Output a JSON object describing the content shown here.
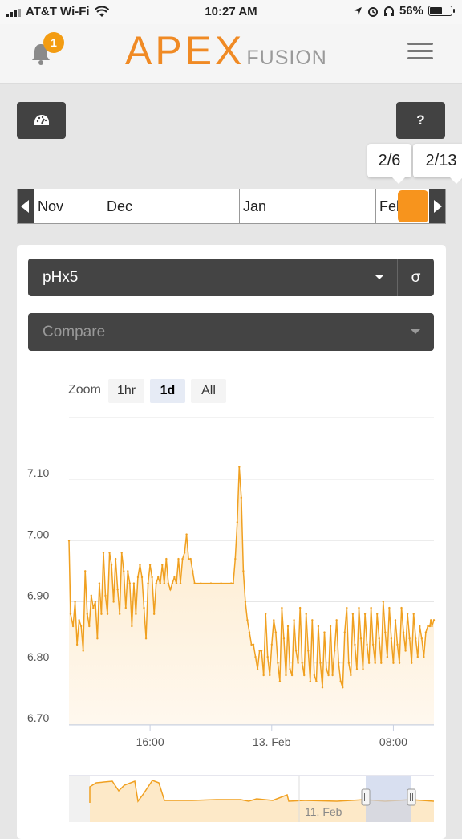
{
  "status_bar": {
    "carrier": "AT&T Wi-Fi",
    "time": "10:27 AM",
    "battery": "56%",
    "battery_level": 0.56
  },
  "header": {
    "notification_count": "1",
    "logo_main": "APEX",
    "logo_sub": "FUSION",
    "icons": [
      "bell-icon",
      "menu-icon"
    ]
  },
  "toolbar": {
    "dashboard_icon": "speedometer-icon",
    "help_label": "?"
  },
  "date_range": {
    "start": "2/6",
    "end": "2/13"
  },
  "timeline": {
    "months": [
      "Nov",
      "Dec",
      "Jan",
      "Feb"
    ]
  },
  "probe": {
    "selected": "pHx5",
    "sigma_label": "σ",
    "compare_placeholder": "Compare"
  },
  "zoom": {
    "label": "Zoom",
    "options": [
      "1hr",
      "1d",
      "All"
    ],
    "active": "1d"
  },
  "colors": {
    "accent": "#f7941d",
    "line": "#f0a020",
    "fill": "#fde9c8",
    "panel_dark": "#444444"
  },
  "chart_data": {
    "type": "area",
    "y_ticks": [
      "7.10",
      "7.00",
      "6.90",
      "6.80",
      "6.70"
    ],
    "x_ticks": [
      "16:00",
      "13. Feb",
      "08:00"
    ],
    "ylim": [
      6.7,
      7.1
    ],
    "x_range_hours": [
      0,
      18
    ],
    "x_tick_positions_hours": [
      4,
      10,
      16
    ],
    "grid": true,
    "series": [
      {
        "values": [
          [
            0.0,
            7.0
          ],
          [
            0.08,
            6.88
          ],
          [
            0.2,
            6.86
          ],
          [
            0.3,
            6.9
          ],
          [
            0.4,
            6.83
          ],
          [
            0.5,
            6.87
          ],
          [
            0.6,
            6.86
          ],
          [
            0.7,
            6.82
          ],
          [
            0.8,
            6.95
          ],
          [
            0.9,
            6.88
          ],
          [
            1.0,
            6.86
          ],
          [
            1.1,
            6.91
          ],
          [
            1.2,
            6.89
          ],
          [
            1.3,
            6.9
          ],
          [
            1.4,
            6.84
          ],
          [
            1.5,
            6.93
          ],
          [
            1.6,
            6.88
          ],
          [
            1.7,
            6.98
          ],
          [
            1.8,
            6.91
          ],
          [
            1.9,
            6.88
          ],
          [
            2.0,
            6.98
          ],
          [
            2.1,
            6.96
          ],
          [
            2.2,
            6.9
          ],
          [
            2.3,
            6.97
          ],
          [
            2.4,
            6.92
          ],
          [
            2.5,
            6.88
          ],
          [
            2.6,
            6.98
          ],
          [
            2.7,
            6.95
          ],
          [
            2.8,
            6.89
          ],
          [
            2.9,
            6.95
          ],
          [
            3.0,
            6.93
          ],
          [
            3.1,
            6.86
          ],
          [
            3.2,
            6.93
          ],
          [
            3.3,
            6.88
          ],
          [
            3.4,
            6.94
          ],
          [
            3.5,
            6.96
          ],
          [
            3.6,
            6.94
          ],
          [
            3.7,
            6.89
          ],
          [
            3.8,
            6.84
          ],
          [
            3.9,
            6.93
          ],
          [
            4.0,
            6.96
          ],
          [
            4.1,
            6.94
          ],
          [
            4.2,
            6.88
          ],
          [
            4.3,
            6.93
          ],
          [
            4.4,
            6.94
          ],
          [
            4.5,
            6.93
          ],
          [
            4.6,
            6.96
          ],
          [
            4.7,
            6.93
          ],
          [
            4.8,
            6.97
          ],
          [
            4.9,
            6.93
          ],
          [
            5.0,
            6.92
          ],
          [
            5.1,
            6.93
          ],
          [
            5.2,
            6.94
          ],
          [
            5.3,
            6.93
          ],
          [
            5.4,
            6.97
          ],
          [
            5.5,
            6.93
          ],
          [
            5.6,
            6.97
          ],
          [
            5.7,
            6.98
          ],
          [
            5.8,
            7.01
          ],
          [
            5.9,
            6.97
          ],
          [
            6.0,
            6.97
          ],
          [
            6.1,
            6.95
          ],
          [
            6.2,
            6.93
          ],
          [
            6.5,
            6.93
          ],
          [
            7.0,
            6.93
          ],
          [
            7.5,
            6.93
          ],
          [
            8.0,
            6.93
          ],
          [
            8.1,
            6.93
          ],
          [
            8.2,
            6.97
          ],
          [
            8.3,
            7.03
          ],
          [
            8.4,
            7.12
          ],
          [
            8.5,
            7.07
          ],
          [
            8.6,
            6.95
          ],
          [
            8.7,
            6.9
          ],
          [
            8.8,
            6.87
          ],
          [
            8.9,
            6.85
          ],
          [
            9.0,
            6.83
          ],
          [
            9.1,
            6.83
          ],
          [
            9.2,
            6.81
          ],
          [
            9.3,
            6.79
          ],
          [
            9.4,
            6.82
          ],
          [
            9.5,
            6.82
          ],
          [
            9.6,
            6.78
          ],
          [
            9.7,
            6.88
          ],
          [
            9.8,
            6.81
          ],
          [
            9.9,
            6.78
          ],
          [
            10.0,
            6.83
          ],
          [
            10.1,
            6.87
          ],
          [
            10.2,
            6.85
          ],
          [
            10.3,
            6.8
          ],
          [
            10.4,
            6.77
          ],
          [
            10.5,
            6.89
          ],
          [
            10.6,
            6.84
          ],
          [
            10.7,
            6.78
          ],
          [
            10.8,
            6.86
          ],
          [
            10.9,
            6.79
          ],
          [
            11.0,
            6.78
          ],
          [
            11.1,
            6.87
          ],
          [
            11.2,
            6.82
          ],
          [
            11.3,
            6.8
          ],
          [
            11.4,
            6.89
          ],
          [
            11.5,
            6.8
          ],
          [
            11.6,
            6.78
          ],
          [
            11.7,
            6.88
          ],
          [
            11.8,
            6.82
          ],
          [
            11.9,
            6.77
          ],
          [
            12.0,
            6.87
          ],
          [
            12.1,
            6.78
          ],
          [
            12.2,
            6.77
          ],
          [
            12.3,
            6.86
          ],
          [
            12.4,
            6.8
          ],
          [
            12.5,
            6.76
          ],
          [
            12.6,
            6.85
          ],
          [
            12.7,
            6.79
          ],
          [
            12.8,
            6.78
          ],
          [
            12.9,
            6.86
          ],
          [
            13.0,
            6.78
          ],
          [
            13.1,
            6.82
          ],
          [
            13.2,
            6.87
          ],
          [
            13.3,
            6.8
          ],
          [
            13.4,
            6.77
          ],
          [
            13.5,
            6.76
          ],
          [
            13.6,
            6.85
          ],
          [
            13.7,
            6.89
          ],
          [
            13.8,
            6.8
          ],
          [
            13.9,
            6.78
          ],
          [
            14.0,
            6.88
          ],
          [
            14.1,
            6.83
          ],
          [
            14.2,
            6.79
          ],
          [
            14.3,
            6.89
          ],
          [
            14.4,
            6.84
          ],
          [
            14.5,
            6.79
          ],
          [
            14.6,
            6.88
          ],
          [
            14.7,
            6.83
          ],
          [
            14.8,
            6.8
          ],
          [
            14.9,
            6.89
          ],
          [
            15.0,
            6.83
          ],
          [
            15.1,
            6.8
          ],
          [
            15.2,
            6.88
          ],
          [
            15.3,
            6.84
          ],
          [
            15.4,
            6.8
          ],
          [
            15.5,
            6.9
          ],
          [
            15.6,
            6.85
          ],
          [
            15.7,
            6.81
          ],
          [
            15.8,
            6.89
          ],
          [
            15.9,
            6.84
          ],
          [
            16.0,
            6.8
          ],
          [
            16.1,
            6.87
          ],
          [
            16.2,
            6.83
          ],
          [
            16.3,
            6.8
          ],
          [
            16.4,
            6.89
          ],
          [
            16.5,
            6.85
          ],
          [
            16.6,
            6.82
          ],
          [
            16.7,
            6.88
          ],
          [
            16.8,
            6.84
          ],
          [
            16.9,
            6.8
          ],
          [
            17.0,
            6.88
          ],
          [
            17.1,
            6.84
          ],
          [
            17.2,
            6.81
          ],
          [
            17.3,
            6.86
          ],
          [
            17.4,
            6.84
          ],
          [
            17.5,
            6.81
          ],
          [
            17.6,
            6.85
          ],
          [
            17.7,
            6.86
          ],
          [
            17.8,
            6.86
          ],
          [
            17.85,
            6.87
          ],
          [
            17.9,
            6.86
          ],
          [
            18.0,
            6.87
          ]
        ]
      }
    ],
    "navigator": {
      "label": "11. Feb"
    }
  }
}
